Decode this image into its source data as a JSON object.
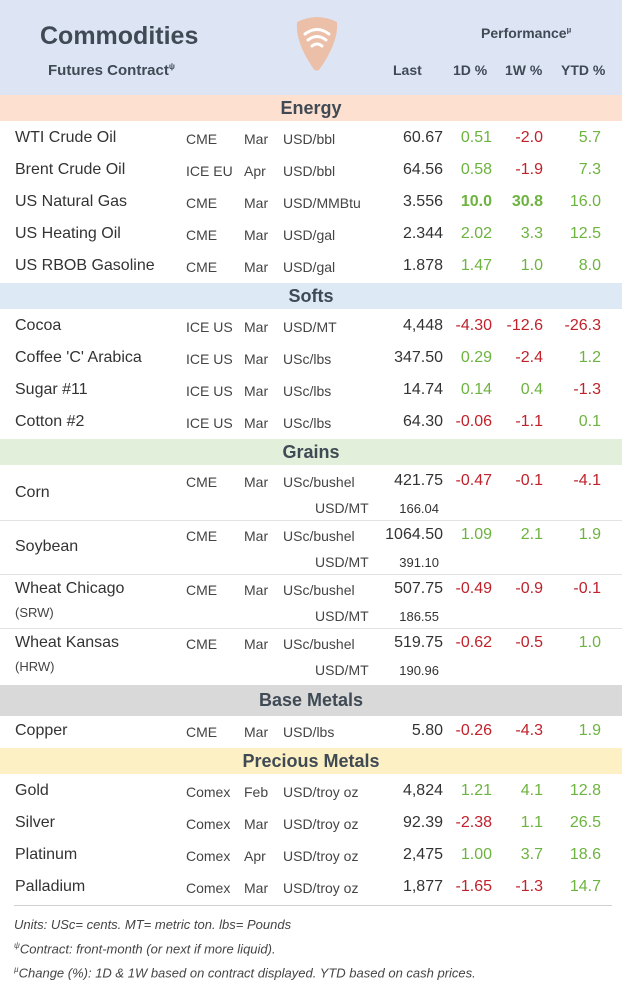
{
  "header": {
    "title": "Commodities",
    "subtitle": "Futures Contract",
    "subtitle_mark": "ψ",
    "performance": "Performance",
    "performance_mark": "µ",
    "col_last": "Last",
    "col_1d": "1D %",
    "col_1w": "1W %",
    "col_ytd": "YTD %",
    "logo_icon": "wifi-pick-logo-icon"
  },
  "colors": {
    "header_bg": "#dde5f5",
    "energy_bg": "#fde0d0",
    "softs_bg": "#dde9f5",
    "grains_bg": "#e2efda",
    "base_bg": "#d9d9d9",
    "precious_bg": "#fdf0c4",
    "positive": "#6db33f",
    "negative": "#c0212a"
  },
  "sections": {
    "energy": "Energy",
    "softs": "Softs",
    "grains": "Grains",
    "base": "Base Metals",
    "precious": "Precious Metals"
  },
  "energy": [
    {
      "name": "WTI Crude Oil",
      "exch": "CME",
      "mon": "Mar",
      "unit": "USD/bbl",
      "last": "60.67",
      "d1": "0.51",
      "w1": "-2.0",
      "ytd": "5.7"
    },
    {
      "name": "Brent Crude Oil",
      "exch": "ICE EU",
      "mon": "Apr",
      "unit": "USD/bbl",
      "last": "64.56",
      "d1": "0.58",
      "w1": "-1.9",
      "ytd": "7.3"
    },
    {
      "name": "US Natural Gas",
      "exch": "CME",
      "mon": "Mar",
      "unit": "USD/MMBtu",
      "last": "3.556",
      "d1": "10.0",
      "w1": "30.8",
      "ytd": "16.0"
    },
    {
      "name": "US Heating Oil",
      "exch": "CME",
      "mon": "Mar",
      "unit": "USD/gal",
      "last": "2.344",
      "d1": "2.02",
      "w1": "3.3",
      "ytd": "12.5"
    },
    {
      "name": "US RBOB Gasoline",
      "exch": "CME",
      "mon": "Mar",
      "unit": "USD/gal",
      "last": "1.878",
      "d1": "1.47",
      "w1": "1.0",
      "ytd": "8.0"
    }
  ],
  "softs": [
    {
      "name": "Cocoa",
      "exch": "ICE US",
      "mon": "Mar",
      "unit": "USD/MT",
      "last": "4,448",
      "d1": "-4.30",
      "w1": "-12.6",
      "ytd": "-26.3"
    },
    {
      "name": "Coffee 'C' Arabica",
      "exch": "ICE US",
      "mon": "Mar",
      "unit": "USc/lbs",
      "last": "347.50",
      "d1": "0.29",
      "w1": "-2.4",
      "ytd": "1.2"
    },
    {
      "name": "Sugar #11",
      "exch": "ICE US",
      "mon": "Mar",
      "unit": "USc/lbs",
      "last": "14.74",
      "d1": "0.14",
      "w1": "0.4",
      "ytd": "-1.3"
    },
    {
      "name": "Cotton #2",
      "exch": "ICE US",
      "mon": "Mar",
      "unit": "USc/lbs",
      "last": "64.30",
      "d1": "-0.06",
      "w1": "-1.1",
      "ytd": "0.1"
    }
  ],
  "grains": [
    {
      "name": "Corn",
      "sub": "",
      "exch": "CME",
      "mon": "Mar",
      "unit": "USc/bushel",
      "last": "421.75",
      "unit2": "USD/MT",
      "last2": "166.04",
      "d1": "-0.47",
      "w1": "-0.1",
      "ytd": "-4.1"
    },
    {
      "name": "Soybean",
      "sub": "",
      "exch": "CME",
      "mon": "Mar",
      "unit": "USc/bushel",
      "last": "1064.50",
      "unit2": "USD/MT",
      "last2": "391.10",
      "d1": "1.09",
      "w1": "2.1",
      "ytd": "1.9"
    },
    {
      "name": "Wheat Chicago",
      "sub": "(SRW)",
      "exch": "CME",
      "mon": "Mar",
      "unit": "USc/bushel",
      "last": "507.75",
      "unit2": "USD/MT",
      "last2": "186.55",
      "d1": "-0.49",
      "w1": "-0.9",
      "ytd": "-0.1"
    },
    {
      "name": "Wheat Kansas",
      "sub": "(HRW)",
      "exch": "CME",
      "mon": "Mar",
      "unit": "USc/bushel",
      "last": "519.75",
      "unit2": "USD/MT",
      "last2": "190.96",
      "d1": "-0.62",
      "w1": "-0.5",
      "ytd": "1.0"
    }
  ],
  "base": [
    {
      "name": "Copper",
      "exch": "CME",
      "mon": "Mar",
      "unit": "USD/lbs",
      "last": "5.80",
      "d1": "-0.26",
      "w1": "-4.3",
      "ytd": "1.9"
    }
  ],
  "precious": [
    {
      "name": "Gold",
      "exch": "Comex",
      "mon": "Feb",
      "unit": "USD/troy oz",
      "last": "4,824",
      "d1": "1.21",
      "w1": "4.1",
      "ytd": "12.8"
    },
    {
      "name": "Silver",
      "exch": "Comex",
      "mon": "Mar",
      "unit": "USD/troy oz",
      "last": "92.39",
      "d1": "-2.38",
      "w1": "1.1",
      "ytd": "26.5"
    },
    {
      "name": "Platinum",
      "exch": "Comex",
      "mon": "Apr",
      "unit": "USD/troy oz",
      "last": "2,475",
      "d1": "1.00",
      "w1": "3.7",
      "ytd": "18.6"
    },
    {
      "name": "Palladium",
      "exch": "Comex",
      "mon": "Mar",
      "unit": "USD/troy oz",
      "last": "1,877",
      "d1": "-1.65",
      "w1": "-1.3",
      "ytd": "14.7"
    }
  ],
  "notes": {
    "units": "Units: USc= cents.  MT= metric ton.  lbs= Pounds",
    "contract_mark": "ψ",
    "contract": "Contract: front-month (or next if more liquid).",
    "change_mark": "µ",
    "change": "Change (%): 1D & 1W based on contract displayed. YTD based on cash prices."
  }
}
